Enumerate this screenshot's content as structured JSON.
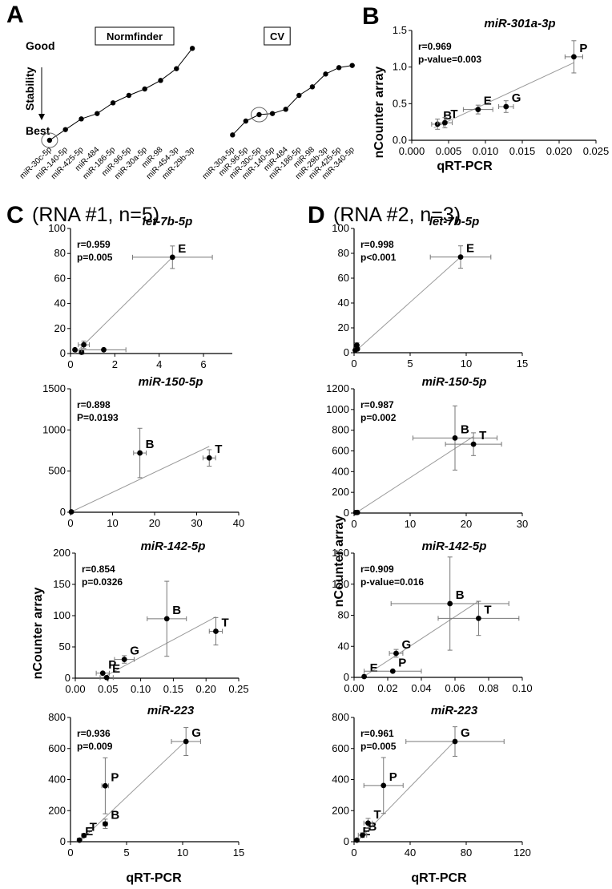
{
  "figure": {
    "panel_A": "A",
    "panel_B": "B",
    "panel_C": "C",
    "panel_D": "D",
    "C_sub": "(RNA #1, n=5)",
    "D_sub": "(RNA #2, n=3)",
    "ylabel": "nCounter array",
    "xlabel": "qRT-PCR",
    "A_good": "Good",
    "A_best": "Best",
    "A_stability": "Stability"
  },
  "chart_data": [
    {
      "id": "A1",
      "type": "line",
      "title": "Normfinder",
      "ylabel": "Stability",
      "categories": [
        "miR-30c-5p",
        "miR-140-5p",
        "miR-425-5p",
        "miR-484",
        "miR-186-5p",
        "miR-96-5p",
        "miR-30a-5p",
        "miR-98",
        "miR-454-3p",
        "miR-29b-3p"
      ],
      "values": [
        1,
        2,
        3,
        3.5,
        4.5,
        5.2,
        5.8,
        6.6,
        7.7,
        9.6
      ],
      "highlight": 0
    },
    {
      "id": "A2",
      "type": "line",
      "title": "CV",
      "categories": [
        "miR-30a-5p",
        "miR-96-5p",
        "miR-30c-5p",
        "miR-140-5p",
        "miR-484",
        "miR-186-5p",
        "miR-98",
        "miR-29b-3p",
        "miR-425-5p",
        "miR-340-5p"
      ],
      "values": [
        1.5,
        2.8,
        3.4,
        3.5,
        3.9,
        5.2,
        6.0,
        7.2,
        7.8,
        8.0
      ],
      "highlight": 2
    },
    {
      "id": "B",
      "type": "scatter",
      "title": "miR-301a-3p",
      "xlim": [
        0,
        0.025
      ],
      "xticks": [
        "0.000",
        "0.005",
        "0.010",
        "0.015",
        "0.020",
        "0.025"
      ],
      "ylim": [
        0,
        1.5
      ],
      "yticks": [
        "0.0",
        "0.5",
        "1.0",
        "1.5"
      ],
      "stat1": "r=0.969",
      "stat2": "p-value=0.003",
      "points": [
        {
          "label": "B",
          "x": 0.0035,
          "y": 0.22,
          "xe": 0.0008,
          "ye": 0.07
        },
        {
          "label": "T",
          "x": 0.0045,
          "y": 0.24,
          "xe": 0.001,
          "ye": 0.07
        },
        {
          "label": "E",
          "x": 0.009,
          "y": 0.42,
          "xe": 0.002,
          "ye": 0.06
        },
        {
          "label": "G",
          "x": 0.0128,
          "y": 0.46,
          "xe": 0.001,
          "ye": 0.08
        },
        {
          "label": "P",
          "x": 0.022,
          "y": 1.14,
          "xe": 0.0012,
          "ye": 0.22
        }
      ],
      "fit": [
        [
          0.003,
          0.17
        ],
        [
          0.022,
          1.06
        ]
      ]
    },
    {
      "id": "C1",
      "type": "scatter",
      "title": "let-7b-5p",
      "xlim": [
        0,
        7.3
      ],
      "xticks": [
        "0",
        "2",
        "4",
        "6"
      ],
      "xtickvals": [
        0,
        2,
        4,
        6
      ],
      "ylim": [
        0,
        100
      ],
      "yticks": [
        "0",
        "20",
        "40",
        "60",
        "80",
        "100"
      ],
      "stat1": "r=0.959",
      "stat2": "p=0.005",
      "points": [
        {
          "label": "",
          "x": 0.2,
          "y": 3,
          "xe": 0,
          "ye": 0
        },
        {
          "label": "",
          "x": 0.5,
          "y": 1,
          "xe": 0.1,
          "ye": 0
        },
        {
          "label": "",
          "x": 0.6,
          "y": 7,
          "xe": 0.25,
          "ye": 3
        },
        {
          "label": "",
          "x": 1.5,
          "y": 3,
          "xe": 1.0,
          "ye": 0
        },
        {
          "label": "E",
          "x": 4.6,
          "y": 77,
          "xe": 1.8,
          "ye": 9
        }
      ],
      "fit": [
        [
          0.2,
          0
        ],
        [
          4.6,
          77
        ]
      ]
    },
    {
      "id": "C2",
      "type": "scatter",
      "title": "miR-150-5p",
      "xlim": [
        0,
        40
      ],
      "xticks": [
        "0",
        "10",
        "20",
        "30",
        "40"
      ],
      "xtickvals": [
        0,
        10,
        20,
        30,
        40
      ],
      "ylim": [
        0,
        1500
      ],
      "yticks": [
        "0",
        "500",
        "1000",
        "1500"
      ],
      "stat1": "r=0.898",
      "stat2": "P=0.0193",
      "points": [
        {
          "label": "",
          "x": 0.2,
          "y": 5,
          "xe": 0,
          "ye": 0
        },
        {
          "label": "B",
          "x": 16.5,
          "y": 720,
          "xe": 1.5,
          "ye": 300
        },
        {
          "label": "T",
          "x": 33,
          "y": 660,
          "xe": 1.5,
          "ye": 100
        }
      ],
      "fit": [
        [
          0,
          0
        ],
        [
          33,
          800
        ]
      ]
    },
    {
      "id": "C3",
      "type": "scatter",
      "title": "miR-142-5p",
      "xlim": [
        0,
        0.25
      ],
      "xticks": [
        "0.00",
        "0.05",
        "0.10",
        "0.15",
        "0.20",
        "0.25"
      ],
      "xtickvals": [
        0,
        0.05,
        0.1,
        0.15,
        0.2,
        0.25
      ],
      "ylim": [
        0,
        200
      ],
      "yticks": [
        "0",
        "50",
        "100",
        "150",
        "200"
      ],
      "stat1": "r=0.854",
      "stat2": "p=0.0326",
      "points": [
        {
          "label": "P",
          "x": 0.042,
          "y": 8,
          "xe": 0.01,
          "ye": 0
        },
        {
          "label": "E",
          "x": 0.048,
          "y": 1,
          "xe": 0.01,
          "ye": 0
        },
        {
          "label": "G",
          "x": 0.075,
          "y": 30,
          "xe": 0.015,
          "ye": 6
        },
        {
          "label": "B",
          "x": 0.14,
          "y": 95,
          "xe": 0.03,
          "ye": 60
        },
        {
          "label": "T",
          "x": 0.215,
          "y": 75,
          "xe": 0.01,
          "ye": 22
        }
      ],
      "fit": [
        [
          0.04,
          0
        ],
        [
          0.215,
          98
        ]
      ]
    },
    {
      "id": "C4",
      "type": "scatter",
      "title": "miR-223",
      "xlim": [
        0,
        15
      ],
      "xticks": [
        "0",
        "5",
        "10",
        "15"
      ],
      "xtickvals": [
        0,
        5,
        10,
        15
      ],
      "ylim": [
        0,
        800
      ],
      "yticks": [
        "0",
        "200",
        "400",
        "600",
        "800"
      ],
      "stat1": "r=0.936",
      "stat2": "p=0.009",
      "points": [
        {
          "label": "E",
          "x": 0.8,
          "y": 10,
          "xe": 0.2,
          "ye": 5
        },
        {
          "label": "T",
          "x": 1.2,
          "y": 40,
          "xe": 0.2,
          "ye": 10
        },
        {
          "label": "B",
          "x": 3.1,
          "y": 115,
          "xe": 0.2,
          "ye": 30
        },
        {
          "label": "P",
          "x": 3.1,
          "y": 360,
          "xe": 0.3,
          "ye": 180
        },
        {
          "label": "G",
          "x": 10.3,
          "y": 645,
          "xe": 1.3,
          "ye": 90
        }
      ],
      "fit": [
        [
          0.8,
          0
        ],
        [
          10.3,
          650
        ]
      ]
    },
    {
      "id": "D1",
      "type": "scatter",
      "title": "let-7b-5p",
      "xlim": [
        0,
        15
      ],
      "xticks": [
        "0",
        "5",
        "10",
        "15"
      ],
      "xtickvals": [
        0,
        5,
        10,
        15
      ],
      "ylim": [
        0,
        100
      ],
      "yticks": [
        "0",
        "20",
        "40",
        "60",
        "80",
        "100"
      ],
      "stat1": "r=0.998",
      "stat2": "p<0.001",
      "points": [
        {
          "label": "",
          "x": 0.1,
          "y": 2,
          "xe": 0,
          "ye": 0
        },
        {
          "label": "",
          "x": 0.2,
          "y": 4,
          "xe": 0,
          "ye": 0
        },
        {
          "label": "",
          "x": 0.25,
          "y": 6,
          "xe": 0,
          "ye": 2
        },
        {
          "label": "",
          "x": 0.3,
          "y": 3,
          "xe": 0,
          "ye": 0
        },
        {
          "label": "E",
          "x": 9.5,
          "y": 77,
          "xe": 2.7,
          "ye": 9
        }
      ],
      "fit": [
        [
          0.1,
          1
        ],
        [
          9.5,
          77
        ]
      ]
    },
    {
      "id": "D2",
      "type": "scatter",
      "title": "miR-150-5p",
      "xlim": [
        0,
        30
      ],
      "xticks": [
        "0",
        "10",
        "20",
        "30"
      ],
      "xtickvals": [
        0,
        10,
        20,
        30
      ],
      "ylim": [
        0,
        1200
      ],
      "yticks": [
        "0",
        "200",
        "400",
        "600",
        "800",
        "1000",
        "1200"
      ],
      "stat1": "r=0.987",
      "stat2": "p=0.002",
      "points": [
        {
          "label": "",
          "x": 0.3,
          "y": 5,
          "xe": 0,
          "ye": 0
        },
        {
          "label": "",
          "x": 0.6,
          "y": 6,
          "xe": 0,
          "ye": 0
        },
        {
          "label": "B",
          "x": 18,
          "y": 725,
          "xe": 7.5,
          "ye": 310
        },
        {
          "label": "T",
          "x": 21.3,
          "y": 665,
          "xe": 5,
          "ye": 110
        }
      ],
      "fit": [
        [
          0.3,
          0
        ],
        [
          21.3,
          740
        ]
      ]
    },
    {
      "id": "D3",
      "type": "scatter",
      "title": "miR-142-5p",
      "xlim": [
        0,
        0.1
      ],
      "xticks": [
        "0.00",
        "0.02",
        "0.04",
        "0.06",
        "0.08",
        "0.10"
      ],
      "xtickvals": [
        0,
        0.02,
        0.04,
        0.06,
        0.08,
        0.1
      ],
      "ylim": [
        0,
        160
      ],
      "yticks": [
        "0",
        "40",
        "80",
        "120",
        "160"
      ],
      "stat1": "r=0.909",
      "stat2": "p-value=0.016",
      "points": [
        {
          "label": "E",
          "x": 0.006,
          "y": 1,
          "xe": 0,
          "ye": 0
        },
        {
          "label": "P",
          "x": 0.023,
          "y": 8,
          "xe": 0.017,
          "ye": 0
        },
        {
          "label": "G",
          "x": 0.025,
          "y": 31,
          "xe": 0.004,
          "ye": 5
        },
        {
          "label": "B",
          "x": 0.057,
          "y": 95,
          "xe": 0.035,
          "ye": 60
        },
        {
          "label": "T",
          "x": 0.074,
          "y": 76,
          "xe": 0.024,
          "ye": 22
        }
      ],
      "fit": [
        [
          0.005,
          0
        ],
        [
          0.074,
          98
        ]
      ]
    },
    {
      "id": "D4",
      "type": "scatter",
      "title": "miR-223",
      "xlim": [
        0,
        120
      ],
      "xticks": [
        "0",
        "40",
        "80",
        "120"
      ],
      "xtickvals": [
        0,
        40,
        80,
        120
      ],
      "ylim": [
        0,
        800
      ],
      "yticks": [
        "0",
        "200",
        "400",
        "600",
        "800"
      ],
      "stat1": "r=0.961",
      "stat2": "p=0.005",
      "points": [
        {
          "label": "E",
          "x": 2,
          "y": 10,
          "xe": 0,
          "ye": 0
        },
        {
          "label": "B",
          "x": 6,
          "y": 42,
          "xe": 3,
          "ye": 15
        },
        {
          "label": "T",
          "x": 10,
          "y": 120,
          "xe": 3,
          "ye": 30
        },
        {
          "label": "P",
          "x": 21,
          "y": 362,
          "xe": 14,
          "ye": 180
        },
        {
          "label": "G",
          "x": 72,
          "y": 645,
          "xe": 35,
          "ye": 95
        }
      ],
      "fit": [
        [
          2,
          0
        ],
        [
          72,
          650
        ]
      ]
    }
  ]
}
